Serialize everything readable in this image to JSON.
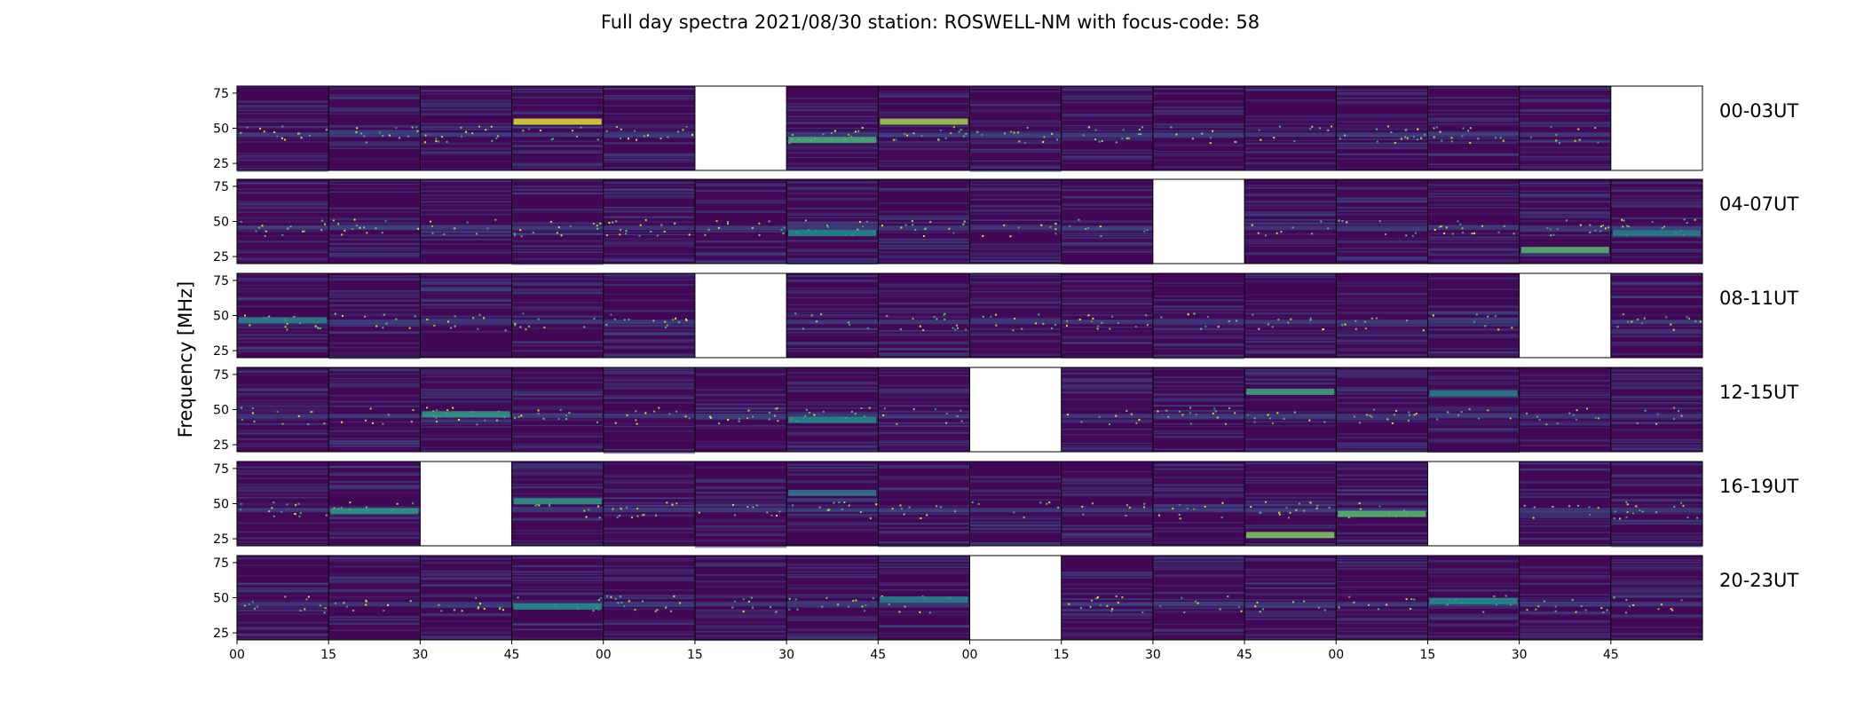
{
  "chart_data": {
    "type": "heatmap",
    "title": "Full day spectra 2021/08/30 station: ROSWELL-NM with focus-code: 58",
    "ylabel": "Frequency [MHz]",
    "xlabel": "",
    "y_ticks": [
      25,
      50,
      75
    ],
    "ylim": [
      20,
      80
    ],
    "x_tick_labels": [
      "00",
      "15",
      "30",
      "45",
      "00",
      "15",
      "30",
      "45",
      "00",
      "15",
      "30",
      "45",
      "00",
      "15",
      "30",
      "45"
    ],
    "panels_per_row": 16,
    "colormap": "viridis",
    "colormap_colors": [
      "#440154",
      "#3b528b",
      "#21918c",
      "#5ec962",
      "#fde725"
    ],
    "rows": [
      {
        "label": "00-03UT",
        "missing_panels": [
          5,
          15
        ],
        "strong_band_mhz": [
          [
            6,
            42,
            0.65
          ],
          [
            3,
            55,
            0.95
          ],
          [
            7,
            55,
            0.85
          ]
        ]
      },
      {
        "label": "04-07UT",
        "missing_panels": [
          10
        ],
        "strong_band_mhz": [
          [
            6,
            42,
            0.5
          ],
          [
            14,
            30,
            0.7
          ],
          [
            15,
            42,
            0.45
          ]
        ]
      },
      {
        "label": "08-11UT",
        "missing_panels": [
          5,
          14
        ],
        "strong_band_mhz": [
          [
            0,
            47,
            0.45
          ]
        ]
      },
      {
        "label": "12-15UT",
        "missing_panels": [
          8
        ],
        "strong_band_mhz": [
          [
            2,
            47,
            0.55
          ],
          [
            6,
            43,
            0.5
          ],
          [
            13,
            62,
            0.45
          ],
          [
            11,
            63,
            0.6
          ]
        ]
      },
      {
        "label": "16-19UT",
        "missing_panels": [
          2,
          13
        ],
        "strong_band_mhz": [
          [
            1,
            45,
            0.55
          ],
          [
            11,
            28,
            0.8
          ],
          [
            12,
            43,
            0.7
          ],
          [
            3,
            52,
            0.55
          ],
          [
            6,
            58,
            0.4
          ]
        ]
      },
      {
        "label": "20-23UT",
        "missing_panels": [
          8
        ],
        "strong_band_mhz": [
          [
            3,
            44,
            0.5
          ],
          [
            7,
            49,
            0.45
          ],
          [
            13,
            48,
            0.5
          ]
        ]
      }
    ]
  }
}
